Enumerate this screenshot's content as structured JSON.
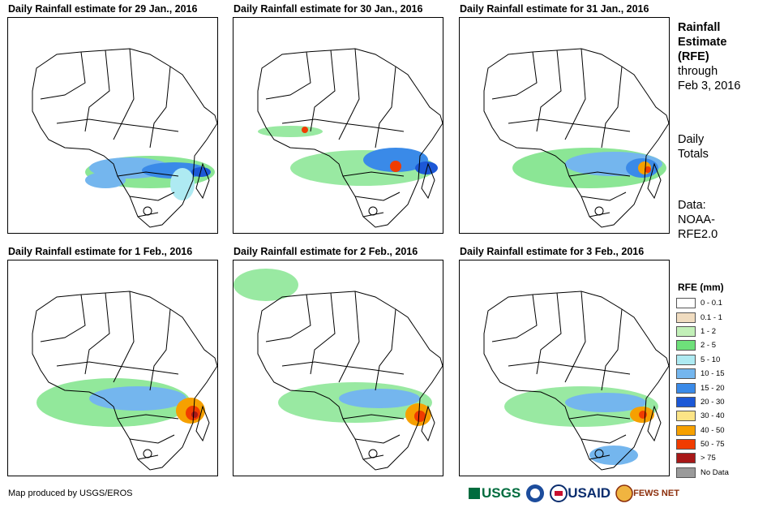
{
  "panels": [
    {
      "title": "Daily Rainfall estimate for 29 Jan., 2016"
    },
    {
      "title": "Daily Rainfall estimate for 30 Jan., 2016"
    },
    {
      "title": "Daily Rainfall estimate for 31 Jan., 2016"
    },
    {
      "title": "Daily Rainfall estimate for 1 Feb., 2016"
    },
    {
      "title": "Daily Rainfall estimate for 2 Feb., 2016"
    },
    {
      "title": "Daily Rainfall estimate for 3 Feb., 2016"
    }
  ],
  "sidebar": {
    "title_line1": "Rainfall",
    "title_line2": "Estimate",
    "title_line3": "(RFE)",
    "through": "through",
    "date": "Feb 3, 2016",
    "daily": "Daily",
    "totals": "Totals",
    "data_label": "Data:",
    "source1": "NOAA-",
    "source2": "RFE2.0"
  },
  "legend": {
    "title": "RFE (mm)",
    "items": [
      {
        "label": "0 - 0.1",
        "color": "#ffffff"
      },
      {
        "label": "0.1 - 1",
        "color": "#f0dcc0"
      },
      {
        "label": "1 - 2",
        "color": "#c2f0b8"
      },
      {
        "label": "2 - 5",
        "color": "#6ee07a"
      },
      {
        "label": "5 - 10",
        "color": "#aeeaf2"
      },
      {
        "label": "10 - 15",
        "color": "#74b6ee"
      },
      {
        "label": "15 - 20",
        "color": "#3a8ae8"
      },
      {
        "label": "20 - 30",
        "color": "#1c58d6"
      },
      {
        "label": "30 - 40",
        "color": "#fce486"
      },
      {
        "label": "40 - 50",
        "color": "#f6a000"
      },
      {
        "label": "50 - 75",
        "color": "#f03c00"
      },
      {
        "label": "> 75",
        "color": "#a81818"
      },
      {
        "label": "No Data",
        "color": "#9a9a9a"
      }
    ]
  },
  "credit": "Map produced by USGS/EROS",
  "logos": {
    "usgs": "USGS",
    "usaid": "USAID",
    "fewsnet": "FEWS NET"
  }
}
